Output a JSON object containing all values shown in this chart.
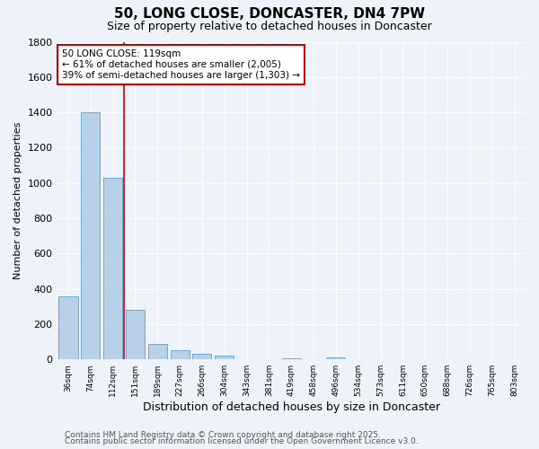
{
  "title": "50, LONG CLOSE, DONCASTER, DN4 7PW",
  "subtitle": "Size of property relative to detached houses in Doncaster",
  "xlabel": "Distribution of detached houses by size in Doncaster",
  "ylabel": "Number of detached properties",
  "categories": [
    "36sqm",
    "74sqm",
    "112sqm",
    "151sqm",
    "189sqm",
    "227sqm",
    "266sqm",
    "304sqm",
    "343sqm",
    "381sqm",
    "419sqm",
    "458sqm",
    "496sqm",
    "534sqm",
    "573sqm",
    "611sqm",
    "650sqm",
    "688sqm",
    "726sqm",
    "765sqm",
    "803sqm"
  ],
  "values": [
    355,
    1400,
    1030,
    280,
    90,
    50,
    30,
    20,
    0,
    0,
    5,
    0,
    10,
    0,
    0,
    0,
    0,
    0,
    0,
    0,
    0
  ],
  "bar_color": "#b8d0e8",
  "bar_edge_color": "#5a9fd4",
  "vline_x": 2.5,
  "vline_color": "#cc0000",
  "annotation_text": "50 LONG CLOSE: 119sqm\n← 61% of detached houses are smaller (2,005)\n39% of semi-detached houses are larger (1,303) →",
  "annotation_box_color": "#ffffff",
  "annotation_box_edge": "#cc0000",
  "ylim": [
    0,
    1800
  ],
  "yticks": [
    0,
    200,
    400,
    600,
    800,
    1000,
    1200,
    1400,
    1600,
    1800
  ],
  "background_color": "#eef2fa",
  "grid_color": "#ffffff",
  "footer_line1": "Contains HM Land Registry data © Crown copyright and database right 2025.",
  "footer_line2": "Contains public sector information licensed under the Open Government Licence v3.0.",
  "title_fontsize": 11,
  "subtitle_fontsize": 9,
  "annotation_fontsize": 7.5,
  "footer_fontsize": 6.5,
  "ylabel_fontsize": 8,
  "xlabel_fontsize": 9,
  "xtick_fontsize": 6.5,
  "ytick_fontsize": 8
}
